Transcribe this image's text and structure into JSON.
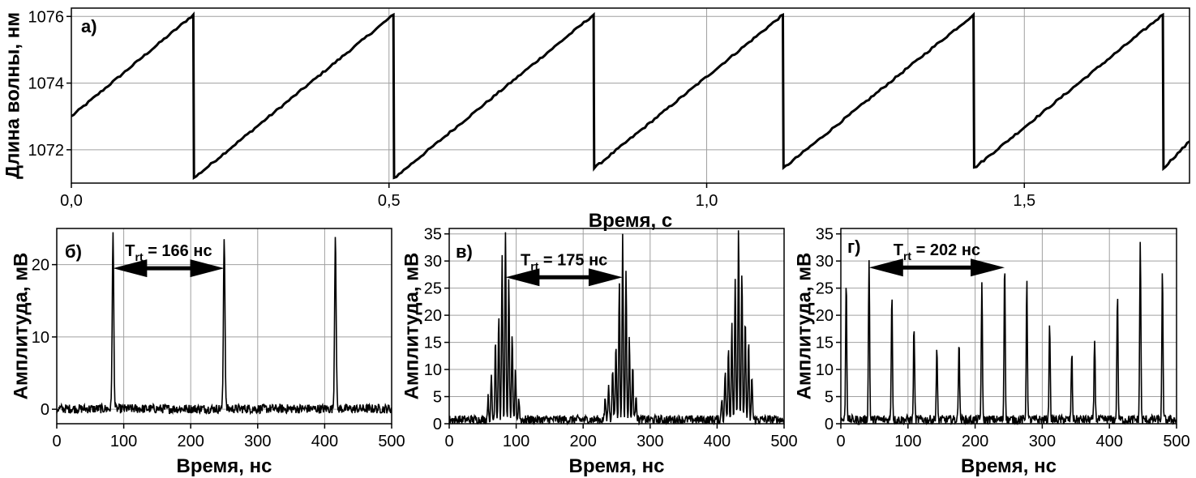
{
  "chart_data": [
    {
      "id": "a",
      "type": "line",
      "panel_label": "а)",
      "title": "",
      "xlabel": "Время, с",
      "ylabel": "Длина волны, нм",
      "xlim": [
        0,
        1.76
      ],
      "ylim": [
        1071,
        1076.25
      ],
      "x_ticks": [
        0,
        0.5,
        1.0,
        1.5
      ],
      "x_tick_labels": [
        "0,0",
        "0,5",
        "1,0",
        "1,5"
      ],
      "y_ticks": [
        1072,
        1074,
        1076
      ],
      "y_tick_labels": [
        "1072",
        "1074",
        "1076"
      ],
      "grid": true,
      "x_grid": [
        0.5,
        1.0,
        1.5
      ],
      "y_grid": [
        1072,
        1074,
        1076
      ],
      "series": [
        {
          "name": "sawtooth",
          "x": [
            0,
            0.192,
            0.193,
            0.507,
            0.508,
            0.822,
            0.823,
            1.12,
            1.121,
            1.42,
            1.421,
            1.718,
            1.719,
            1.76
          ],
          "y": [
            1073.0,
            1076.05,
            1071.15,
            1076.05,
            1071.15,
            1076.05,
            1071.45,
            1076.05,
            1071.45,
            1076.05,
            1071.45,
            1076.05,
            1071.45,
            1072.25
          ]
        }
      ]
    },
    {
      "id": "b",
      "type": "line",
      "panel_label": "б)",
      "xlabel": "Время, нс",
      "ylabel": "Амплитуда, мВ",
      "xlim": [
        0,
        500
      ],
      "ylim": [
        -2,
        25
      ],
      "x_ticks": [
        0,
        100,
        200,
        300,
        400,
        500
      ],
      "x_tick_labels": [
        "0",
        "100",
        "200",
        "300",
        "400",
        "500"
      ],
      "y_ticks": [
        0,
        10,
        20
      ],
      "y_tick_labels": [
        "0",
        "10",
        "20"
      ],
      "grid": true,
      "noise_amplitude": 0.8,
      "peaks": [
        {
          "x": 84,
          "y": 24,
          "w": 1.6
        },
        {
          "x": 250,
          "y": 24,
          "w": 1.6
        },
        {
          "x": 416,
          "y": 24.3,
          "w": 1.6
        }
      ],
      "annotation": {
        "main": "T",
        "sub": "rt",
        "rest": " = 166 нс",
        "from": 84,
        "to": 250,
        "y": 19.5
      }
    },
    {
      "id": "c",
      "type": "line",
      "panel_label": "в)",
      "xlabel": "Время, нс",
      "ylabel": "Амплитуда, мВ",
      "xlim": [
        0,
        500
      ],
      "ylim": [
        0,
        36
      ],
      "x_ticks": [
        0,
        100,
        200,
        300,
        400,
        500
      ],
      "x_tick_labels": [
        "0",
        "100",
        "200",
        "300",
        "400",
        "500"
      ],
      "y_ticks": [
        0,
        5,
        10,
        15,
        20,
        25,
        30,
        35
      ],
      "y_tick_labels": [
        "0",
        "5",
        "10",
        "15",
        "20",
        "25",
        "30",
        "35"
      ],
      "grid": true,
      "noise_amplitude": 1.2,
      "peaks": [
        {
          "x": 58,
          "y": 4,
          "w": 1.2
        },
        {
          "x": 63,
          "y": 8,
          "w": 1.2
        },
        {
          "x": 69,
          "y": 15,
          "w": 1.2
        },
        {
          "x": 74,
          "y": 19,
          "w": 1.2
        },
        {
          "x": 79,
          "y": 30,
          "w": 1.2
        },
        {
          "x": 84,
          "y": 34.5,
          "w": 1.2
        },
        {
          "x": 89,
          "y": 25.5,
          "w": 1.2
        },
        {
          "x": 94,
          "y": 15,
          "w": 1.2
        },
        {
          "x": 99,
          "y": 9,
          "w": 1.2
        },
        {
          "x": 104,
          "y": 4,
          "w": 1.2
        },
        {
          "x": 233,
          "y": 4,
          "w": 1.2
        },
        {
          "x": 238,
          "y": 7,
          "w": 1.2
        },
        {
          "x": 244,
          "y": 10,
          "w": 1.2
        },
        {
          "x": 249,
          "y": 14,
          "w": 1.2
        },
        {
          "x": 254,
          "y": 26,
          "w": 1.2
        },
        {
          "x": 259,
          "y": 34.5,
          "w": 1.2
        },
        {
          "x": 264,
          "y": 27,
          "w": 1.2
        },
        {
          "x": 269,
          "y": 15,
          "w": 1.2
        },
        {
          "x": 274,
          "y": 10,
          "w": 1.2
        },
        {
          "x": 279,
          "y": 5,
          "w": 1.2
        },
        {
          "x": 407,
          "y": 4,
          "w": 1.2
        },
        {
          "x": 412,
          "y": 9,
          "w": 1.2
        },
        {
          "x": 417,
          "y": 13.5,
          "w": 1.2
        },
        {
          "x": 422,
          "y": 18,
          "w": 1.2
        },
        {
          "x": 427,
          "y": 26,
          "w": 1.2
        },
        {
          "x": 432,
          "y": 35.5,
          "w": 1.2
        },
        {
          "x": 437,
          "y": 26.5,
          "w": 1.2
        },
        {
          "x": 442,
          "y": 19,
          "w": 1.2
        },
        {
          "x": 447,
          "y": 14,
          "w": 1.2
        },
        {
          "x": 452,
          "y": 8,
          "w": 1.2
        }
      ],
      "annotation": {
        "main": "T",
        "sub": "rt",
        "rest": " = 175 нс",
        "from": 84,
        "to": 259,
        "y": 27
      }
    },
    {
      "id": "d",
      "type": "line",
      "panel_label": "г)",
      "xlabel": "Время, нс",
      "ylabel": "Амплитуда, мВ",
      "xlim": [
        0,
        500
      ],
      "ylim": [
        0,
        36
      ],
      "x_ticks": [
        0,
        100,
        200,
        300,
        400,
        500
      ],
      "x_tick_labels": [
        "0",
        "100",
        "200",
        "300",
        "400",
        "500"
      ],
      "y_ticks": [
        0,
        5,
        10,
        15,
        20,
        25,
        30,
        35
      ],
      "y_tick_labels": [
        "0",
        "5",
        "10",
        "15",
        "20",
        "25",
        "30",
        "35"
      ],
      "grid": true,
      "noise_amplitude": 1.2,
      "peaks": [
        {
          "x": 8,
          "y": 26,
          "w": 1.2
        },
        {
          "x": 42,
          "y": 29.5,
          "w": 1.2
        },
        {
          "x": 76,
          "y": 23.5,
          "w": 1.2
        },
        {
          "x": 109,
          "y": 17.5,
          "w": 1.2
        },
        {
          "x": 143,
          "y": 13,
          "w": 1.2
        },
        {
          "x": 176,
          "y": 15,
          "w": 1.2
        },
        {
          "x": 210,
          "y": 25,
          "w": 1.2
        },
        {
          "x": 244,
          "y": 29,
          "w": 1.2
        },
        {
          "x": 277,
          "y": 25.5,
          "w": 1.2
        },
        {
          "x": 311,
          "y": 18.5,
          "w": 1.2
        },
        {
          "x": 344,
          "y": 12.5,
          "w": 1.2
        },
        {
          "x": 378,
          "y": 15,
          "w": 1.2
        },
        {
          "x": 412,
          "y": 23,
          "w": 1.2
        },
        {
          "x": 446,
          "y": 33,
          "w": 1.2
        },
        {
          "x": 479,
          "y": 27,
          "w": 1.2
        }
      ],
      "annotation": {
        "main": "T",
        "sub": "rt",
        "rest": " = 202 нс",
        "from": 42,
        "to": 244,
        "y": 28.8
      }
    }
  ]
}
